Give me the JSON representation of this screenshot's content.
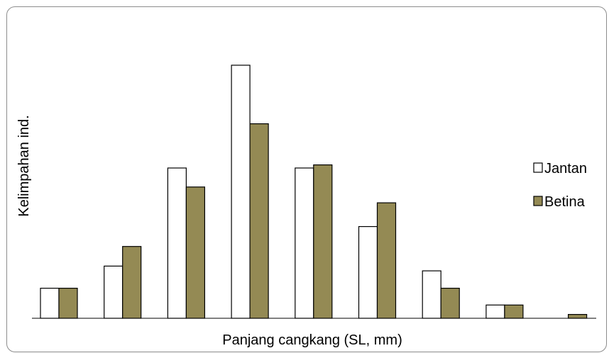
{
  "chart_data": {
    "type": "bar",
    "title": "",
    "xlabel": "Panjang cangkang (SL, mm)",
    "ylabel": "Kelimpahan ind.",
    "categories": [
      "",
      "",
      "",
      "",
      "",
      "",
      "",
      "",
      ""
    ],
    "ylim": [
      0,
      8
    ],
    "grid": false,
    "legend_position": "right",
    "series": [
      {
        "name": "Jantan",
        "color": "#ffffff",
        "values": [
          0.95,
          1.65,
          4.75,
          8.0,
          4.75,
          2.9,
          1.5,
          0.42,
          0.0
        ]
      },
      {
        "name": "Betina",
        "color": "#948a54",
        "values": [
          0.95,
          2.27,
          4.15,
          6.15,
          4.85,
          3.65,
          0.95,
          0.42,
          0.12
        ]
      }
    ]
  }
}
